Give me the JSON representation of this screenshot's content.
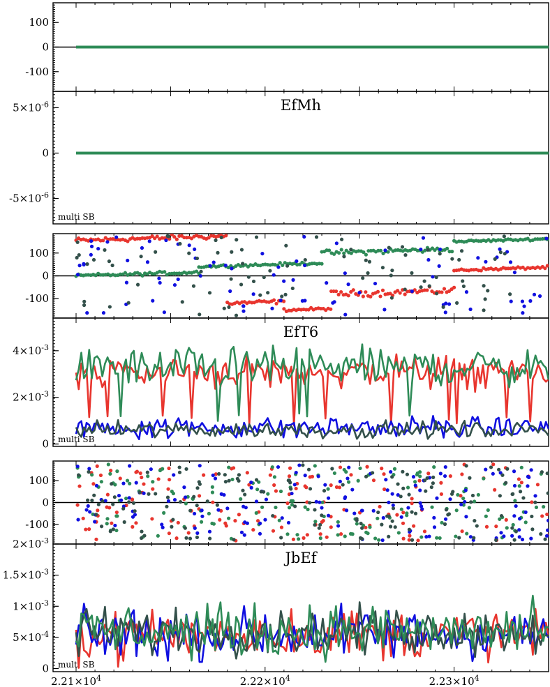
{
  "colors": {
    "red": "#e8352e",
    "green": "#2e8b57",
    "blue": "#1010e0",
    "slate": "#33504a",
    "axis": "#000000"
  },
  "chart_data": [
    {
      "type": "line",
      "panel": "phase-1",
      "x_range": [
        22100,
        22350
      ],
      "ylim": [
        -180,
        180
      ],
      "yticks": [
        {
          "v": 100,
          "label": "100"
        },
        {
          "v": 0,
          "label": "0"
        },
        {
          "v": -100,
          "label": "-100"
        }
      ],
      "series": [
        {
          "color": "green",
          "constant": 0
        }
      ]
    },
    {
      "type": "line",
      "panel": "amplitude-1",
      "title": "EfMh",
      "annotation": "multi SB",
      "x_range": [
        22100,
        22350
      ],
      "ylim": [
        -7.8e-06,
        6.8e-06
      ],
      "yticks": [
        {
          "v": 5e-06,
          "label": "5×10",
          "exp": "-6"
        },
        {
          "v": 0,
          "label": "0",
          "exp": ""
        },
        {
          "v": -5e-06,
          "label": "-5×10",
          "exp": "-6"
        }
      ],
      "series": [
        {
          "color": "green",
          "constant": 0
        }
      ]
    },
    {
      "type": "scatter",
      "panel": "phase-2",
      "x_range": [
        22100,
        22350
      ],
      "ylim": [
        -185,
        185
      ],
      "yticks": [
        {
          "v": 100,
          "label": "100"
        },
        {
          "v": 0,
          "label": "0"
        },
        {
          "v": -100,
          "label": "-100"
        }
      ],
      "series": [
        {
          "color": "red",
          "segments": [
            [
              22100,
              22180,
              155,
              20
            ],
            [
              22180,
              22210,
              -120,
              15
            ],
            [
              22210,
              22235,
              -150,
              10
            ],
            [
              22235,
              22300,
              -80,
              25
            ],
            [
              22300,
              22350,
              25,
              10
            ]
          ]
        },
        {
          "color": "green",
          "segments": [
            [
              22100,
              22165,
              0,
              12
            ],
            [
              22165,
              22230,
              40,
              10
            ],
            [
              22230,
              22300,
              100,
              20
            ],
            [
              22300,
              22350,
              150,
              8
            ]
          ]
        },
        {
          "color": "blue",
          "random": true
        },
        {
          "color": "slate",
          "random": true
        }
      ]
    },
    {
      "type": "line",
      "panel": "amplitude-2",
      "title": "EfT6",
      "annotation": "multi SB",
      "x_range": [
        22100,
        22350
      ],
      "ylim": [
        -0.0001,
        0.0054
      ],
      "yticks": [
        {
          "v": 0.004,
          "label": "4×10",
          "exp": "-3"
        },
        {
          "v": 0.002,
          "label": "2×10",
          "exp": "-3"
        },
        {
          "v": 0,
          "label": "0",
          "exp": ""
        }
      ],
      "series": [
        {
          "color": "red",
          "base": 0.0031,
          "spread": 0.0006,
          "dips": true
        },
        {
          "color": "green",
          "base": 0.0033,
          "spread": 0.0007,
          "dips": true
        },
        {
          "color": "blue",
          "base": 0.0007,
          "spread": 0.0004
        },
        {
          "color": "slate",
          "base": 0.0006,
          "spread": 0.0003
        }
      ]
    },
    {
      "type": "scatter",
      "panel": "phase-3",
      "x_range": [
        22100,
        22350
      ],
      "ylim": [
        -190,
        190
      ],
      "yticks": [
        {
          "v": 100,
          "label": "100"
        },
        {
          "v": 0,
          "label": "0"
        },
        {
          "v": -100,
          "label": "-100"
        }
      ],
      "series": [
        {
          "color": "red",
          "random": true
        },
        {
          "color": "green",
          "random": true
        },
        {
          "color": "blue",
          "random": true
        },
        {
          "color": "slate",
          "random": true
        }
      ]
    },
    {
      "type": "line",
      "panel": "amplitude-3",
      "title": "JbEf",
      "annotation": "multi SB",
      "x_range": [
        22100,
        22350
      ],
      "ylim": [
        -5e-05,
        0.002
      ],
      "yticks": [
        {
          "v": 0.002,
          "label": "2×10",
          "exp": "-3"
        },
        {
          "v": 0.0015,
          "label": "1.5×10",
          "exp": "-3"
        },
        {
          "v": 0.001,
          "label": "1×10",
          "exp": "-3"
        },
        {
          "v": 0.0005,
          "label": "5×10",
          "exp": "-4"
        },
        {
          "v": 0,
          "label": "0",
          "exp": ""
        }
      ],
      "series": [
        {
          "color": "red",
          "base": 0.00055,
          "spread": 0.00035
        },
        {
          "color": "blue",
          "base": 0.00055,
          "spread": 0.00035
        },
        {
          "color": "slate",
          "base": 0.0006,
          "spread": 0.0003
        },
        {
          "color": "green",
          "base": 0.0006,
          "spread": 0.00035
        }
      ]
    }
  ],
  "x_axis": {
    "range": [
      22100,
      22350
    ],
    "ticks": [
      {
        "v": 22100,
        "label": "2.21×10",
        "exp": "4"
      },
      {
        "v": 22200,
        "label": "2.22×10",
        "exp": "4"
      },
      {
        "v": 22300,
        "label": "2.23×10",
        "exp": "4"
      }
    ]
  }
}
